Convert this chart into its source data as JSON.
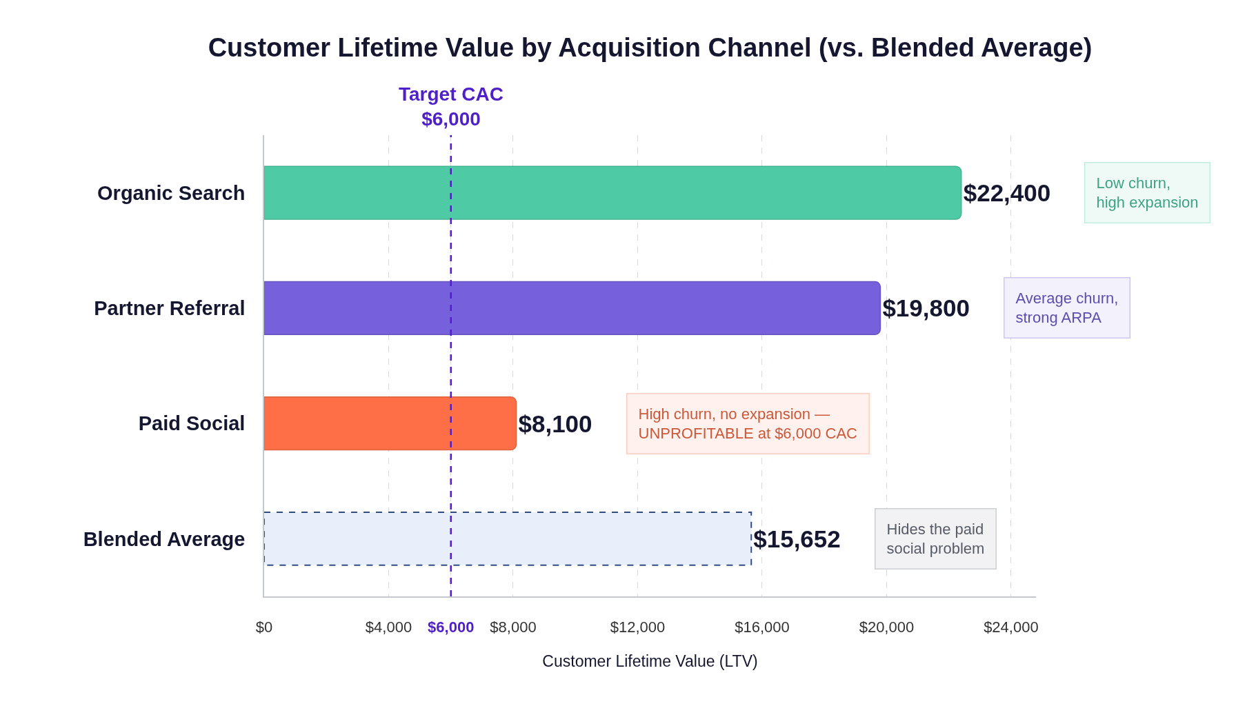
{
  "chart_data": {
    "type": "bar",
    "orientation": "horizontal",
    "title": "Customer Lifetime Value by Acquisition Channel (vs. Blended Average)",
    "xlabel": "Customer Lifetime Value (LTV)",
    "categories": [
      "Organic Search",
      "Partner Referral",
      "Paid Social",
      "Blended Average"
    ],
    "series": [
      {
        "colors": [
          "#4ecba5",
          "#7660db",
          "#fe6f47",
          null
        ],
        "values": [
          22400,
          19800,
          8100,
          null
        ],
        "value_labels": [
          "$22,400",
          "$19,800",
          "$8,100",
          null
        ]
      },
      {
        "color": "#e8eefa",
        "line_style": "dashed",
        "values": [
          null,
          null,
          null,
          15652
        ],
        "value_labels": [
          null,
          null,
          null,
          "$15,652"
        ]
      }
    ],
    "xlim": [
      0,
      24800
    ],
    "xticks": [
      {
        "value": 0,
        "label": "$0"
      },
      {
        "value": 4000,
        "label": "$4,000"
      },
      {
        "value": 6000,
        "label": "$6,000"
      },
      {
        "value": 8000,
        "label": "$8,000"
      },
      {
        "value": 12000,
        "label": "$12,000"
      },
      {
        "value": 16000,
        "label": "$16,000"
      },
      {
        "value": 20000,
        "label": "$20,000"
      },
      {
        "value": 24000,
        "label": "$24,000"
      }
    ],
    "grid": "x",
    "ref_lines": [
      {
        "axis": "x",
        "value": 6000,
        "label": "Target CAC\n$6,000",
        "color": "#4f1fc7",
        "line_style": "dashed"
      }
    ],
    "annotations": [
      "Low churn,\nhigh expansion",
      "Average churn,\nstrong ARPA",
      "High churn, no expansion —\nUNPROFITABLE at $6,000 CAC",
      "Hides the paid\nsocial problem"
    ]
  }
}
